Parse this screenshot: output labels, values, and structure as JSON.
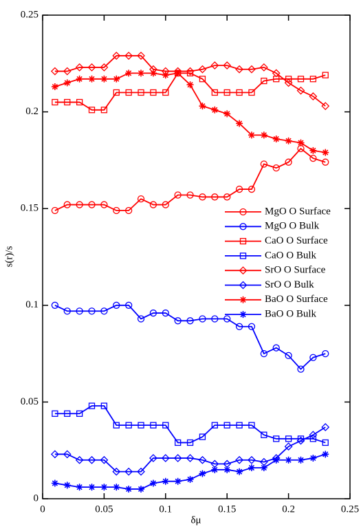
{
  "chart_data": {
    "type": "line",
    "x_label": "δμ",
    "y_label": "s(r)/s",
    "x": [
      0.01,
      0.02,
      0.03,
      0.04,
      0.05,
      0.06,
      0.07,
      0.08,
      0.09,
      0.1,
      0.11,
      0.12,
      0.13,
      0.14,
      0.15,
      0.16,
      0.17,
      0.18,
      0.19,
      0.2,
      0.21,
      0.22,
      0.23
    ],
    "xlim": [
      0,
      0.25
    ],
    "xticks": [
      0,
      0.05,
      0.1,
      0.15,
      0.2,
      0.25
    ],
    "ylim": [
      0,
      0.25
    ],
    "yticks": [
      0,
      0.05,
      0.1,
      0.15,
      0.2,
      0.25
    ],
    "legend": "center-right",
    "series": [
      {
        "name": "MgO O Surface",
        "color": "#ff0000",
        "marker": "circle",
        "values": [
          0.149,
          0.152,
          0.152,
          0.152,
          0.152,
          0.149,
          0.149,
          0.155,
          0.152,
          0.152,
          0.157,
          0.157,
          0.156,
          0.156,
          0.156,
          0.16,
          0.16,
          0.173,
          0.171,
          0.174,
          0.181,
          0.176,
          0.174
        ]
      },
      {
        "name": "MgO O Bulk",
        "color": "#0000ff",
        "marker": "circle",
        "values": [
          0.1,
          0.097,
          0.097,
          0.097,
          0.097,
          0.1,
          0.1,
          0.093,
          0.096,
          0.096,
          0.092,
          0.092,
          0.093,
          0.093,
          0.093,
          0.089,
          0.089,
          0.075,
          0.078,
          0.074,
          0.067,
          0.073,
          0.075
        ]
      },
      {
        "name": "CaO O Surface",
        "color": "#ff0000",
        "marker": "square",
        "values": [
          0.205,
          0.205,
          0.205,
          0.201,
          0.201,
          0.21,
          0.21,
          0.21,
          0.21,
          0.21,
          0.22,
          0.22,
          0.217,
          0.21,
          0.21,
          0.21,
          0.21,
          0.216,
          0.217,
          0.217,
          0.217,
          0.217,
          0.219
        ]
      },
      {
        "name": "CaO O Bulk",
        "color": "#0000ff",
        "marker": "square",
        "values": [
          0.044,
          0.044,
          0.044,
          0.048,
          0.048,
          0.038,
          0.038,
          0.038,
          0.038,
          0.038,
          0.029,
          0.029,
          0.032,
          0.038,
          0.038,
          0.038,
          0.038,
          0.033,
          0.031,
          0.031,
          0.031,
          0.031,
          0.029
        ]
      },
      {
        "name": "SrO O Surface",
        "color": "#ff0000",
        "marker": "diamond",
        "values": [
          0.221,
          0.221,
          0.223,
          0.223,
          0.223,
          0.229,
          0.229,
          0.229,
          0.222,
          0.221,
          0.221,
          0.221,
          0.222,
          0.224,
          0.224,
          0.222,
          0.222,
          0.223,
          0.22,
          0.215,
          0.211,
          0.208,
          0.203
        ]
      },
      {
        "name": "SrO O Bulk",
        "color": "#0000ff",
        "marker": "diamond",
        "values": [
          0.023,
          0.023,
          0.02,
          0.02,
          0.02,
          0.014,
          0.014,
          0.014,
          0.021,
          0.021,
          0.021,
          0.021,
          0.02,
          0.018,
          0.018,
          0.02,
          0.02,
          0.019,
          0.021,
          0.027,
          0.03,
          0.033,
          0.037
        ]
      },
      {
        "name": "BaO O Surface",
        "color": "#ff0000",
        "marker": "star",
        "values": [
          0.213,
          0.215,
          0.217,
          0.217,
          0.217,
          0.217,
          0.22,
          0.22,
          0.22,
          0.219,
          0.22,
          0.214,
          0.203,
          0.201,
          0.199,
          0.194,
          0.188,
          0.188,
          0.186,
          0.185,
          0.184,
          0.18,
          0.179
        ]
      },
      {
        "name": "BaO O Bulk",
        "color": "#0000ff",
        "marker": "star",
        "values": [
          0.008,
          0.007,
          0.006,
          0.006,
          0.006,
          0.006,
          0.005,
          0.005,
          0.008,
          0.009,
          0.009,
          0.01,
          0.013,
          0.015,
          0.015,
          0.014,
          0.016,
          0.016,
          0.02,
          0.02,
          0.02,
          0.021,
          0.023
        ]
      }
    ]
  }
}
